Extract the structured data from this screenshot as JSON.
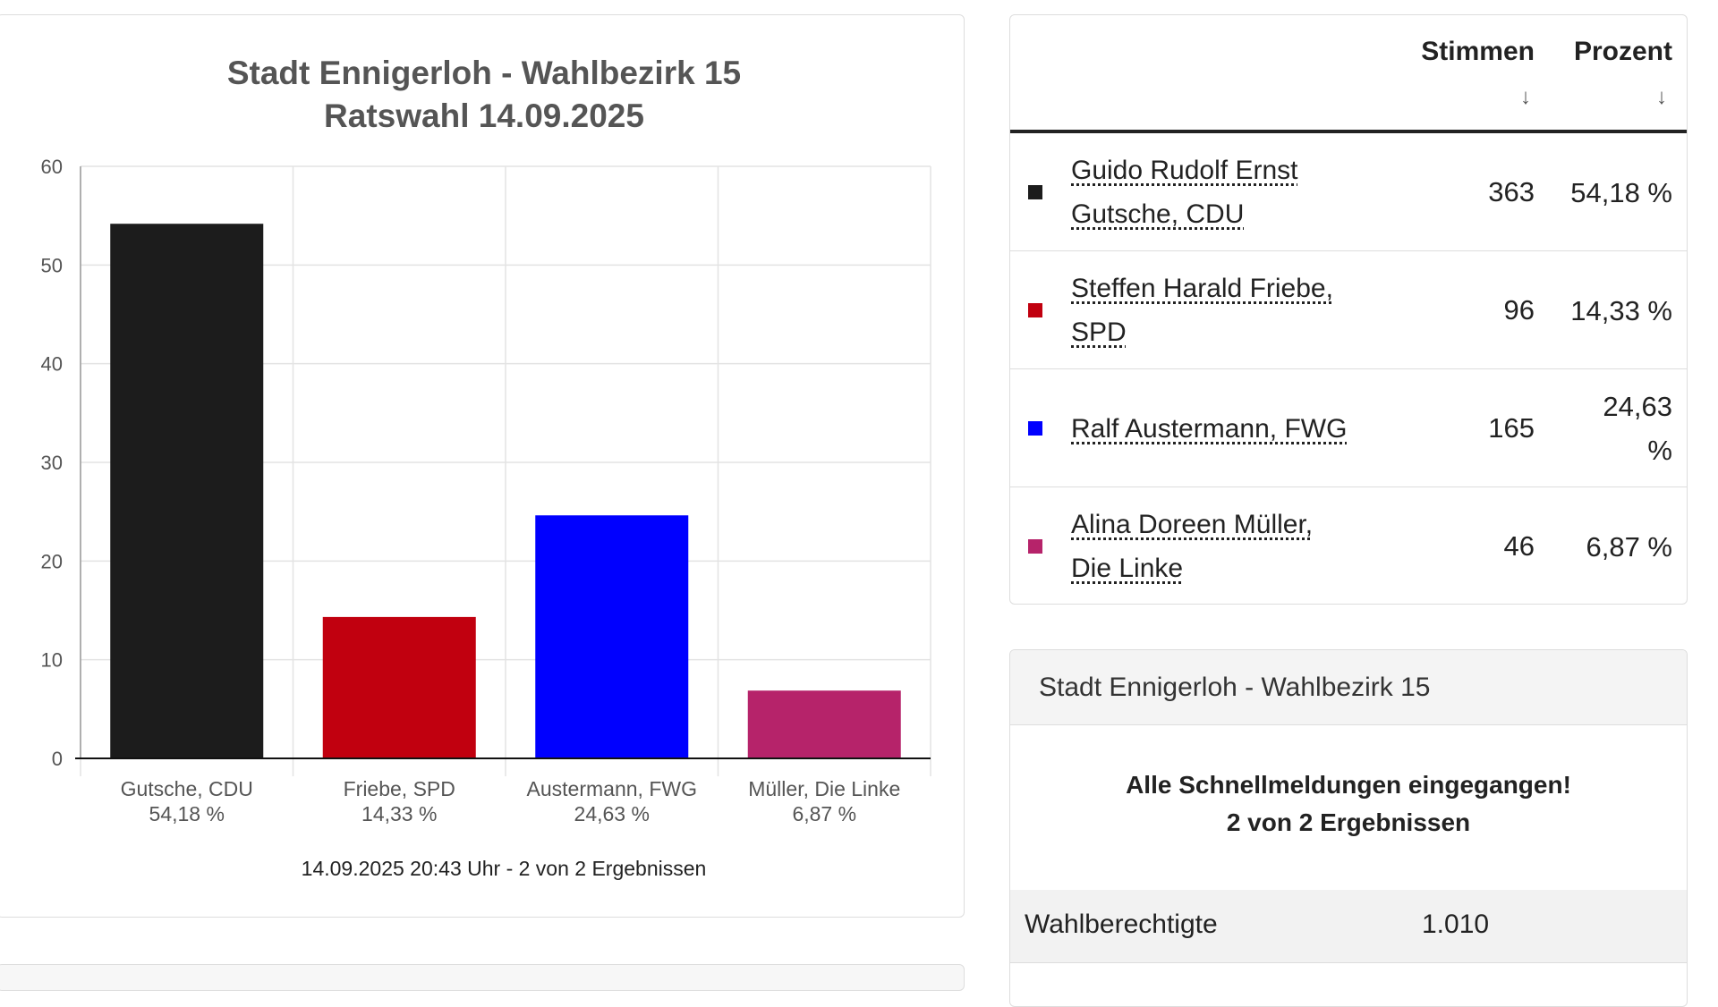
{
  "chart_data": {
    "type": "bar",
    "title": [
      "Stadt Ennigerloh - Wahlbezirk 15",
      "Ratswahl 14.09.2025"
    ],
    "categories": [
      "Gutsche, CDU",
      "Friebe, SPD",
      "Austermann, FWG",
      "Müller, Die Linke"
    ],
    "value_labels": [
      "54,18 %",
      "14,33 %",
      "24,63 %",
      "6,87 %"
    ],
    "values": [
      54.18,
      14.33,
      24.63,
      6.87
    ],
    "colors": [
      "#1c1c1c",
      "#c1000f",
      "#0000ff",
      "#b6236a"
    ],
    "ylim": [
      0,
      60
    ],
    "yticks": [
      0,
      10,
      20,
      30,
      40,
      50,
      60
    ],
    "grid": true,
    "footer": "14.09.2025 20:43 Uhr - 2 von 2 Ergebnissen"
  },
  "results": {
    "headers": {
      "votes": "Stimmen",
      "percent": "Prozent",
      "sort_icon": "arrow-down-icon"
    },
    "rows": [
      {
        "name_line1": "Guido Rudolf Ernst",
        "name_line2": "Gutsche, CDU",
        "votes": "363",
        "percent": "54,18 %",
        "color": "#1c1c1c"
      },
      {
        "name_line1": "Steffen Harald Friebe,",
        "name_line2": "SPD",
        "votes": "96",
        "percent": "14,33 %",
        "color": "#c1000f"
      },
      {
        "name_line1": "Ralf Austermann, FWG",
        "name_line2": "",
        "votes": "165",
        "percent": "24,63 %",
        "color": "#0000ff"
      },
      {
        "name_line1": "Alina Doreen Müller,",
        "name_line2": "Die Linke",
        "votes": "46",
        "percent": "6,87 %",
        "color": "#b6236a"
      }
    ]
  },
  "info": {
    "header": "Stadt Ennigerloh - Wahlbezirk 15",
    "message_line1": "Alle Schnellmeldungen eingegangen!",
    "message_line2": "2 von 2 Ergebnissen",
    "eligible_label": "Wahlberechtigte",
    "eligible_value": "1.010"
  }
}
